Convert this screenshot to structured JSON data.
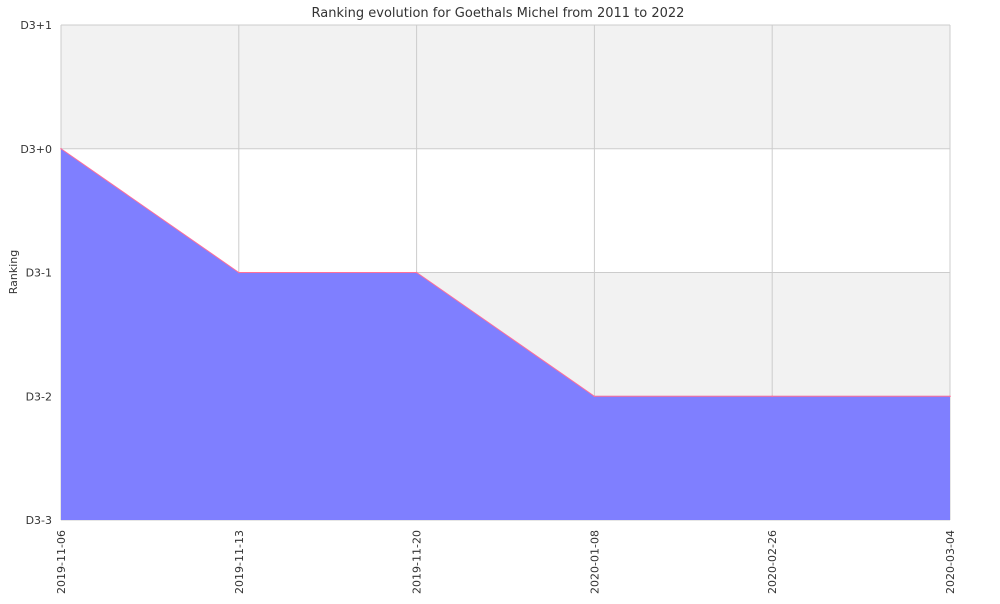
{
  "chart_data": {
    "type": "area",
    "title": "Ranking evolution for Goethals Michel from 2011 to 2022",
    "xlabel": "",
    "ylabel": "Ranking",
    "x": [
      "2019-11-06",
      "2019-11-13",
      "2019-11-20",
      "2020-01-08",
      "2020-02-26",
      "2020-03-04"
    ],
    "y_tick_labels": [
      "D3-3",
      "D3-2",
      "D3-1",
      "D3+0",
      "D3+1"
    ],
    "y_tick_values": [
      -3,
      -2,
      -1,
      0,
      1
    ],
    "ylim": [
      -3,
      1
    ],
    "series": [
      {
        "values": [
          0,
          -1,
          -1,
          -2,
          -2,
          -2
        ]
      }
    ],
    "grid": true,
    "banded_background": true,
    "colors": {
      "fill": "#7f7fff",
      "line": "#ff6f9a",
      "band": "#f2f2f2",
      "grid": "#cccccc"
    }
  }
}
